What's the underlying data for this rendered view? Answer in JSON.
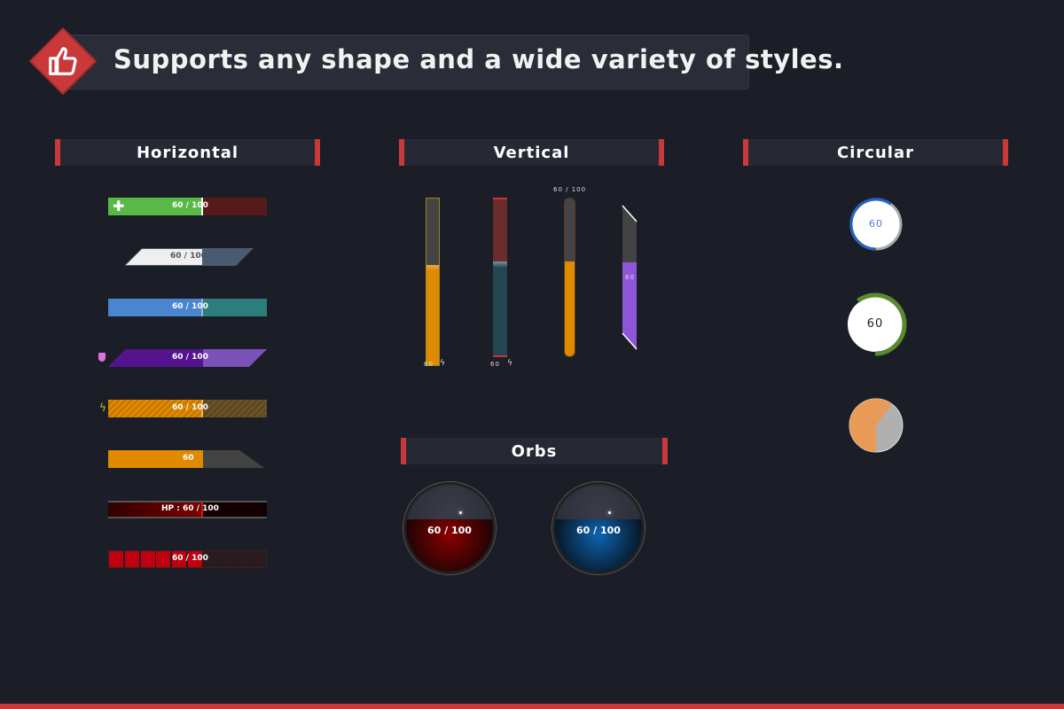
{
  "header": {
    "title": "Supports any shape and a wide variety of styles.",
    "icon": "thumbs-up-icon"
  },
  "sections": {
    "horizontal": "Horizontal",
    "vertical": "Vertical",
    "circular": "Circular",
    "orbs": "Orbs"
  },
  "value": 60,
  "max": 100,
  "horizontal": {
    "bars": [
      {
        "label": "60 / 100",
        "fill": "#58b947",
        "empty": "#561a1a",
        "icon": "plus-icon"
      },
      {
        "label": "60 / 100",
        "fill": "#efefef",
        "empty": "#4a5a70"
      },
      {
        "label": "60 / 100",
        "fill": "#4a86d0",
        "empty": "#2e7d7d"
      },
      {
        "label": "60 / 100",
        "fill": "#54148f",
        "empty": "#7b52b8",
        "icon": "shield-icon"
      },
      {
        "label": "60 / 100",
        "fill": "#e08a00",
        "empty": "#6b5328",
        "icon": "lightning-icon"
      },
      {
        "label": "60",
        "fill": "#e08a00",
        "empty": "#434343"
      },
      {
        "label": "HP : 60 / 100",
        "fill": "#6b0000",
        "empty": "#120000"
      },
      {
        "label": "60 / 100",
        "fill": "#c0000e",
        "empty": "#2b1a1e"
      }
    ]
  },
  "vertical": {
    "bar1_label": "60",
    "bar2_label": "60",
    "bar3_label": "60 / 100",
    "bar4_label": "60"
  },
  "circular": {
    "ring1_label": "60",
    "ring2_label": "60"
  },
  "orbs": [
    {
      "label": "60 / 100",
      "color": "#8a0000"
    },
    {
      "label": "60 / 100",
      "color": "#0d64b0"
    }
  ]
}
